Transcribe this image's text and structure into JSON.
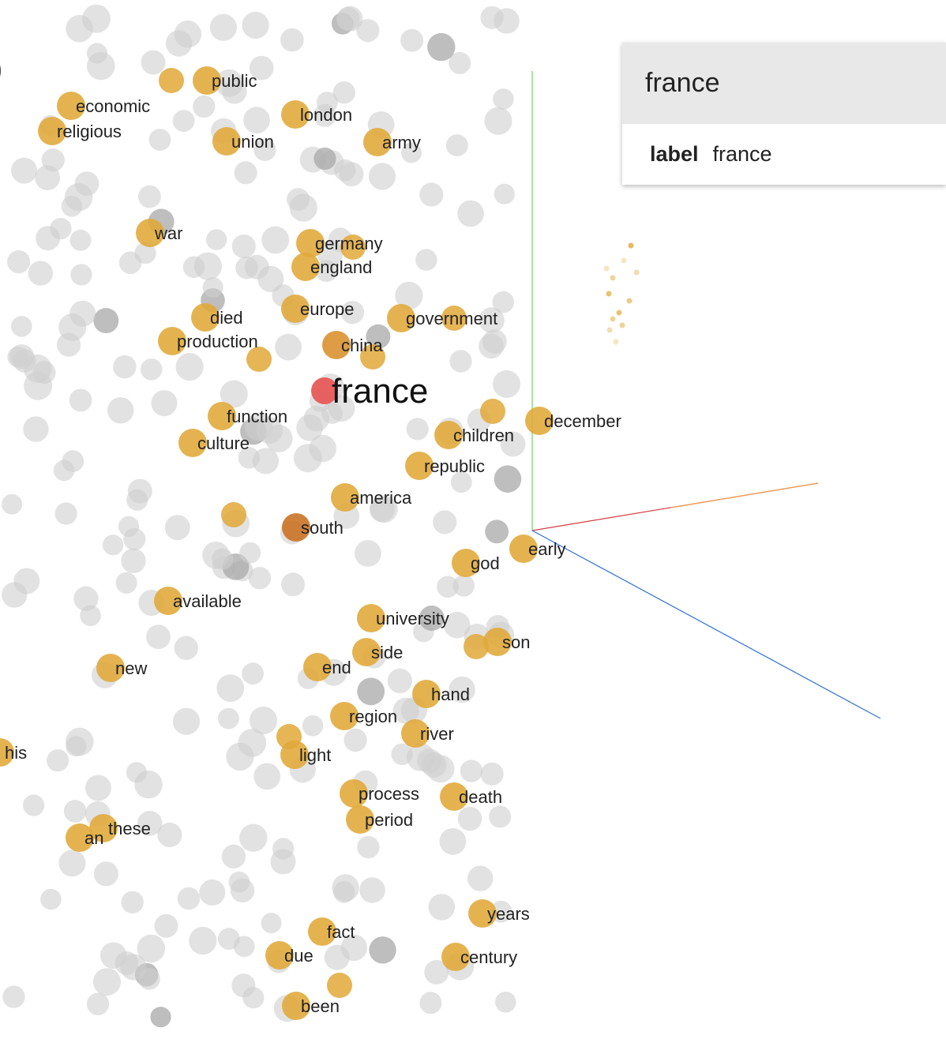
{
  "inspector": {
    "title": "france",
    "fields": [
      {
        "key": "label",
        "value": "france"
      }
    ]
  },
  "projection": {
    "focus_label": "france",
    "labeled_points": [
      {
        "label": "public",
        "color": "#e0a838"
      },
      {
        "label": "economic",
        "color": "#e0a838"
      },
      {
        "label": "religious",
        "color": "#e0a838"
      },
      {
        "label": "london",
        "color": "#e0a838"
      },
      {
        "label": "union",
        "color": "#e0a838"
      },
      {
        "label": "army",
        "color": "#e0a838"
      },
      {
        "label": "war",
        "color": "#e0a838"
      },
      {
        "label": "germany",
        "color": "#e0a838"
      },
      {
        "label": "england",
        "color": "#e0a838"
      },
      {
        "label": "europe",
        "color": "#e0a838"
      },
      {
        "label": "died",
        "color": "#e0a838"
      },
      {
        "label": "production",
        "color": "#e0a838"
      },
      {
        "label": "government",
        "color": "#e0a838"
      },
      {
        "label": "china",
        "color": "#d9902a"
      },
      {
        "label": "function",
        "color": "#e0a838"
      },
      {
        "label": "culture",
        "color": "#e0a838"
      },
      {
        "label": "children",
        "color": "#e0a838"
      },
      {
        "label": "december",
        "color": "#e0a838"
      },
      {
        "label": "republic",
        "color": "#e0a838"
      },
      {
        "label": "america",
        "color": "#e0a838"
      },
      {
        "label": "south",
        "color": "#c87020"
      },
      {
        "label": "early",
        "color": "#e0a838"
      },
      {
        "label": "god",
        "color": "#e0a838"
      },
      {
        "label": "available",
        "color": "#e0a838"
      },
      {
        "label": "university",
        "color": "#e0a838"
      },
      {
        "label": "son",
        "color": "#e0a838"
      },
      {
        "label": "side",
        "color": "#e0a838"
      },
      {
        "label": "new",
        "color": "#e0a838"
      },
      {
        "label": "end",
        "color": "#e0a838"
      },
      {
        "label": "hand",
        "color": "#e0a838"
      },
      {
        "label": "region",
        "color": "#e0a838"
      },
      {
        "label": "river",
        "color": "#e0a838"
      },
      {
        "label": "his",
        "color": "#e0a838"
      },
      {
        "label": "light",
        "color": "#e0a838"
      },
      {
        "label": "process",
        "color": "#e0a838"
      },
      {
        "label": "death",
        "color": "#e0a838"
      },
      {
        "label": "period",
        "color": "#e0a838"
      },
      {
        "label": "these",
        "color": "#e0a838"
      },
      {
        "label": "an",
        "color": "#e0a838"
      },
      {
        "label": "years",
        "color": "#e0a838"
      },
      {
        "label": "fact",
        "color": "#e0a838"
      },
      {
        "label": "due",
        "color": "#e0a838"
      },
      {
        "label": "century",
        "color": "#e0a838"
      },
      {
        "label": "been",
        "color": "#e0a838"
      }
    ],
    "colors": {
      "focus": "#e85a5a",
      "neighbor": "#e0a838",
      "dim": "#cfcfcf",
      "axis_y": "#7ed07e",
      "axis_x": "#d04040",
      "axis_x_far": "#f0a050",
      "axis_z": "#3070d8"
    }
  }
}
